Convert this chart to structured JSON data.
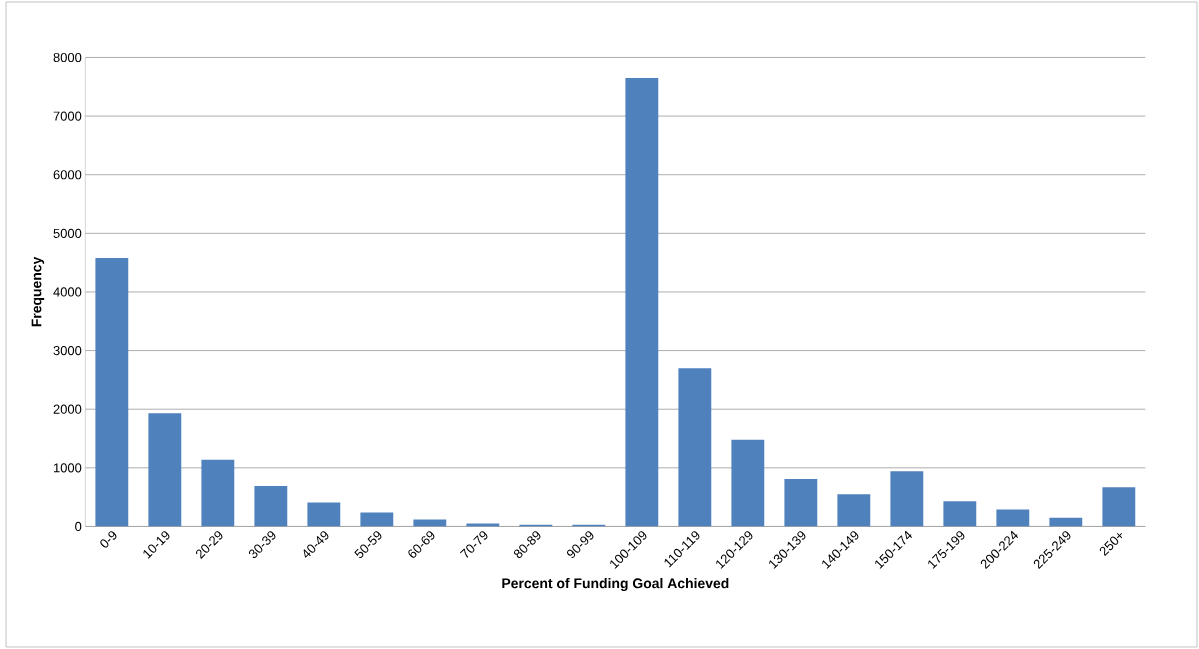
{
  "chart_data": {
    "type": "bar",
    "xlabel": "Percent of Funding Goal Achieved",
    "ylabel": "Frequency",
    "categories": [
      "0-9",
      "10-19",
      "20-29",
      "30-39",
      "40-49",
      "50-59",
      "60-69",
      "70-79",
      "80-89",
      "90-99",
      "100-109",
      "110-119",
      "120-129",
      "130-139",
      "140-149",
      "150-174",
      "175-199",
      "200-224",
      "225-249",
      "250+"
    ],
    "values": [
      4580,
      1930,
      1140,
      690,
      410,
      240,
      120,
      50,
      30,
      30,
      7650,
      2700,
      1480,
      810,
      550,
      940,
      430,
      290,
      150,
      670
    ],
    "color": "#4f81bd",
    "ylim": [
      0,
      8000
    ],
    "yticks": [
      0,
      1000,
      2000,
      3000,
      4000,
      5000,
      6000,
      7000,
      8000
    ],
    "grid": "y"
  }
}
